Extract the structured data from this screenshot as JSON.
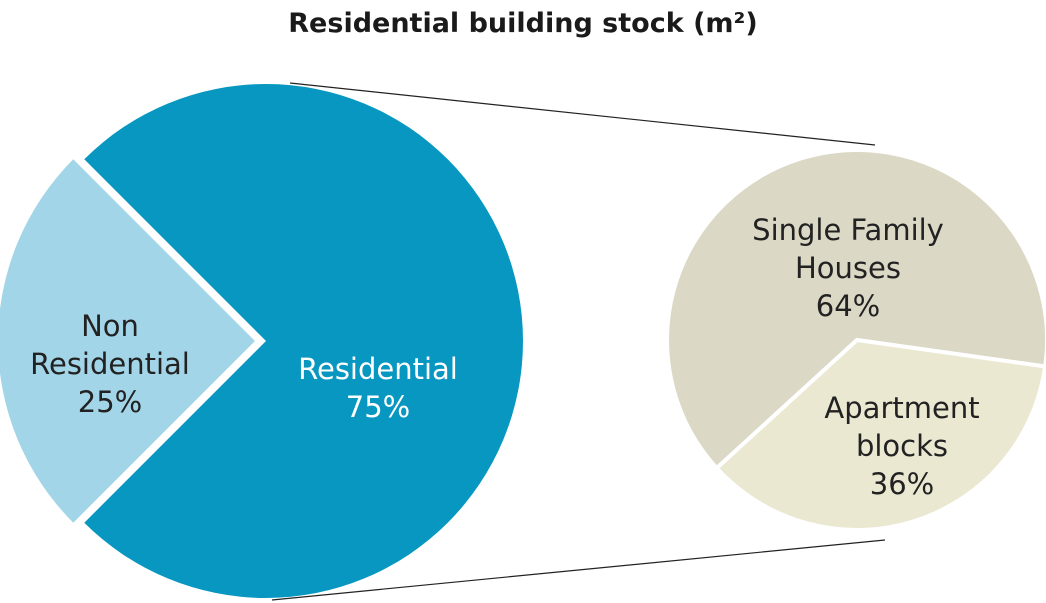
{
  "chart_data": [
    {
      "type": "pie",
      "title": "Residential building stock (m²)",
      "categories": [
        "Non Residential",
        "Residential"
      ],
      "values": [
        25,
        75
      ],
      "value_labels": [
        "25%",
        "75%"
      ],
      "colors": [
        "#a3d5e8",
        "#0797c0"
      ],
      "explode": [
        true,
        false
      ]
    },
    {
      "type": "pie",
      "categories": [
        "Single Family Houses",
        "Apartment blocks"
      ],
      "values": [
        64,
        36
      ],
      "value_labels": [
        "64%",
        "36%"
      ],
      "colors": [
        "#dbd8c5",
        "#ebe8d2"
      ],
      "explode": [
        false,
        false
      ]
    }
  ]
}
